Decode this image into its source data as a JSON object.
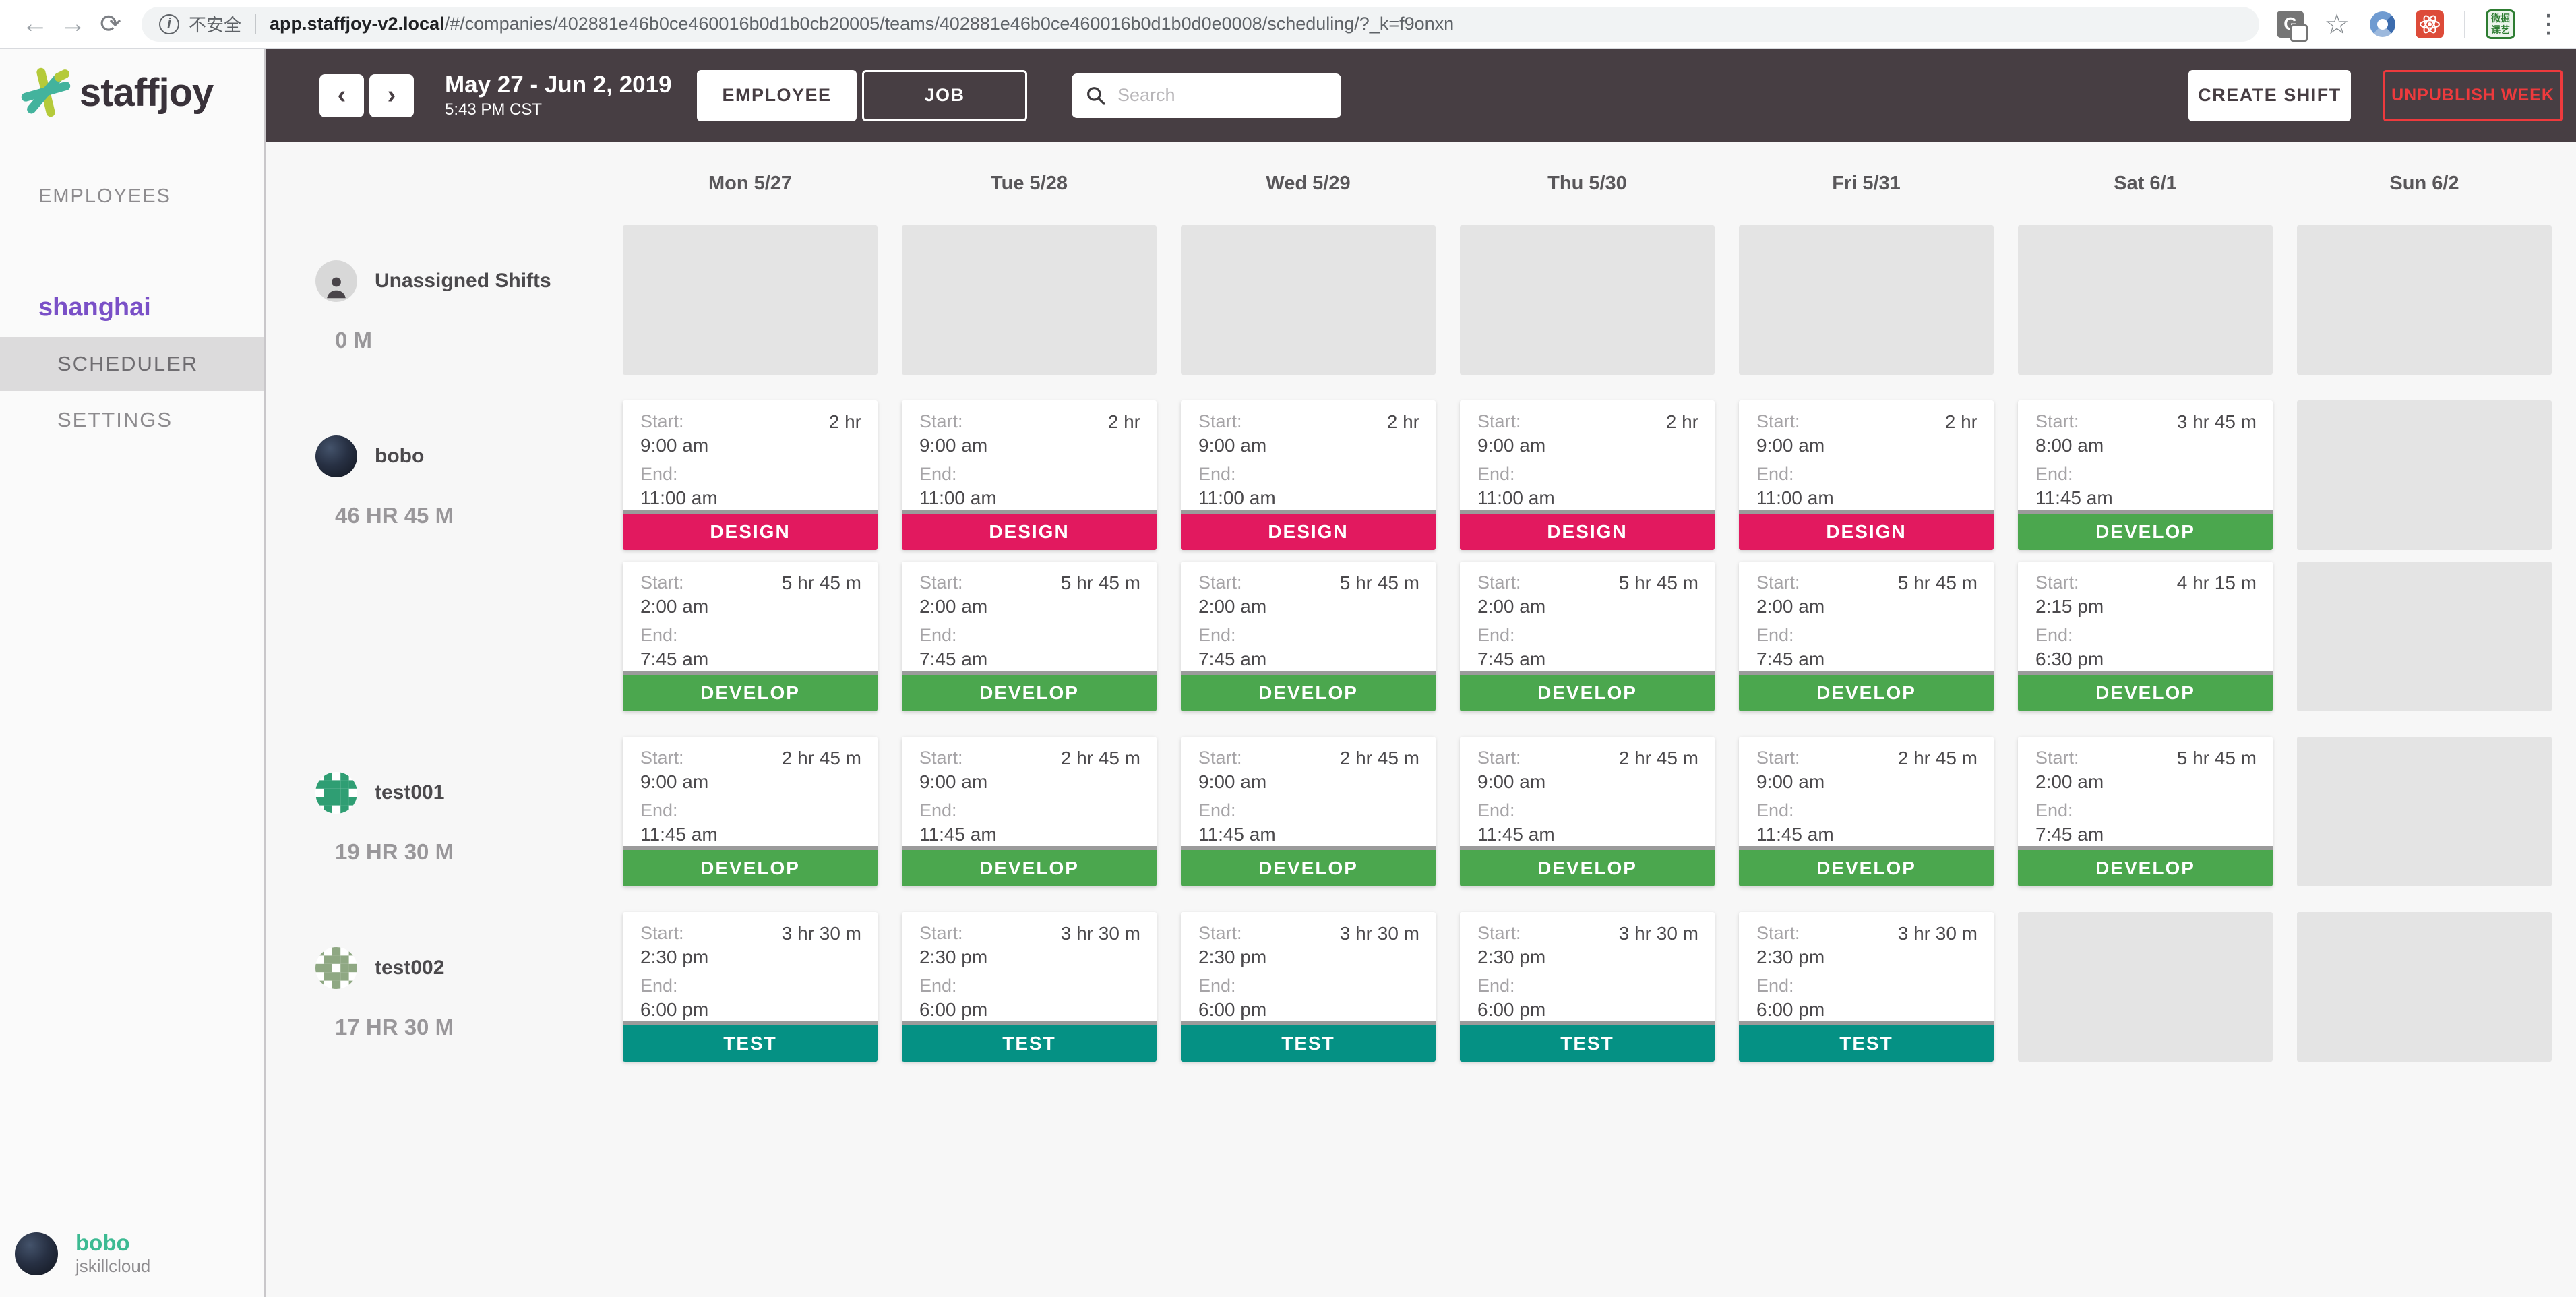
{
  "browser": {
    "back_glyph": "←",
    "forward_glyph": "→",
    "reload_glyph": "⟳",
    "security_label": "不安全",
    "url_host": "app.staffjoy-v2.local",
    "url_path": "/#/companies/402881e46b0ce460016b0d1b0cb20005/teams/402881e46b0ce460016b0d1b0d0e0008/scheduling/?_k=f9onxn",
    "translate_glyph": "G",
    "star_glyph": "☆",
    "stamp_text": "微掘课艺",
    "menu_glyph": "⋮"
  },
  "sidebar": {
    "brand": "staffjoy",
    "employees": "EMPLOYEES",
    "team": "shanghai",
    "scheduler": "SCHEDULER",
    "settings": "SETTINGS",
    "user": {
      "name": "bobo",
      "company": "jskillcloud"
    }
  },
  "toolbar": {
    "prev_glyph": "‹",
    "next_glyph": "›",
    "date_range": "May 27 - Jun 2, 2019",
    "time": "5:43 PM CST",
    "employee": "EMPLOYEE",
    "job": "JOB",
    "search_placeholder": "Search",
    "create_shift": "CREATE SHIFT",
    "unpublish": "UNPUBLISH WEEK"
  },
  "calendar": {
    "days": [
      "Mon 5/27",
      "Tue 5/28",
      "Wed 5/29",
      "Thu 5/30",
      "Fri 5/31",
      "Sat 6/1",
      "Sun 6/2"
    ],
    "start_label": "Start:",
    "end_label": "End:",
    "groups": [
      {
        "name": "Unassigned Shifts",
        "hours": "0 M",
        "avatar": "placeholder",
        "rows": [
          [
            null,
            null,
            null,
            null,
            null,
            null,
            null
          ]
        ]
      },
      {
        "name": "bobo",
        "hours": "46 HR 45 M",
        "avatar": "photo",
        "rows": [
          [
            {
              "start": "9:00 am",
              "end": "11:00 am",
              "duration": "2 hr",
              "job": "DESIGN"
            },
            {
              "start": "9:00 am",
              "end": "11:00 am",
              "duration": "2 hr",
              "job": "DESIGN"
            },
            {
              "start": "9:00 am",
              "end": "11:00 am",
              "duration": "2 hr",
              "job": "DESIGN"
            },
            {
              "start": "9:00 am",
              "end": "11:00 am",
              "duration": "2 hr",
              "job": "DESIGN"
            },
            {
              "start": "9:00 am",
              "end": "11:00 am",
              "duration": "2 hr",
              "job": "DESIGN"
            },
            {
              "start": "8:00 am",
              "end": "11:45 am",
              "duration": "3 hr 45 m",
              "job": "DEVELOP"
            },
            null
          ],
          [
            {
              "start": "2:00 am",
              "end": "7:45 am",
              "duration": "5 hr 45 m",
              "job": "DEVELOP"
            },
            {
              "start": "2:00 am",
              "end": "7:45 am",
              "duration": "5 hr 45 m",
              "job": "DEVELOP"
            },
            {
              "start": "2:00 am",
              "end": "7:45 am",
              "duration": "5 hr 45 m",
              "job": "DEVELOP"
            },
            {
              "start": "2:00 am",
              "end": "7:45 am",
              "duration": "5 hr 45 m",
              "job": "DEVELOP"
            },
            {
              "start": "2:00 am",
              "end": "7:45 am",
              "duration": "5 hr 45 m",
              "job": "DEVELOP"
            },
            {
              "start": "2:15 pm",
              "end": "6:30 pm",
              "duration": "4 hr 15 m",
              "job": "DEVELOP"
            },
            null
          ]
        ]
      },
      {
        "name": "test001",
        "hours": "19 HR 30 M",
        "avatar": "identicon-green",
        "rows": [
          [
            {
              "start": "9:00 am",
              "end": "11:45 am",
              "duration": "2 hr 45 m",
              "job": "DEVELOP"
            },
            {
              "start": "9:00 am",
              "end": "11:45 am",
              "duration": "2 hr 45 m",
              "job": "DEVELOP"
            },
            {
              "start": "9:00 am",
              "end": "11:45 am",
              "duration": "2 hr 45 m",
              "job": "DEVELOP"
            },
            {
              "start": "9:00 am",
              "end": "11:45 am",
              "duration": "2 hr 45 m",
              "job": "DEVELOP"
            },
            {
              "start": "9:00 am",
              "end": "11:45 am",
              "duration": "2 hr 45 m",
              "job": "DEVELOP"
            },
            {
              "start": "2:00 am",
              "end": "7:45 am",
              "duration": "5 hr 45 m",
              "job": "DEVELOP"
            },
            null
          ]
        ]
      },
      {
        "name": "test002",
        "hours": "17 HR 30 M",
        "avatar": "identicon-sage",
        "rows": [
          [
            {
              "start": "2:30 pm",
              "end": "6:00 pm",
              "duration": "3 hr 30 m",
              "job": "TEST"
            },
            {
              "start": "2:30 pm",
              "end": "6:00 pm",
              "duration": "3 hr 30 m",
              "job": "TEST"
            },
            {
              "start": "2:30 pm",
              "end": "6:00 pm",
              "duration": "3 hr 30 m",
              "job": "TEST"
            },
            {
              "start": "2:30 pm",
              "end": "6:00 pm",
              "duration": "3 hr 30 m",
              "job": "TEST"
            },
            {
              "start": "2:30 pm",
              "end": "6:00 pm",
              "duration": "3 hr 30 m",
              "job": "TEST"
            },
            null,
            null
          ]
        ]
      }
    ]
  },
  "job_colors": {
    "DESIGN": "#e2195f",
    "DEVELOP": "#4ba74e",
    "TEST": "#059184"
  },
  "brand_colors": {
    "logo_lime": "#b5ca3a",
    "logo_teal": "#43b39d",
    "identicon_green": "#2f9e73",
    "identicon_sage": "#8fa883"
  }
}
